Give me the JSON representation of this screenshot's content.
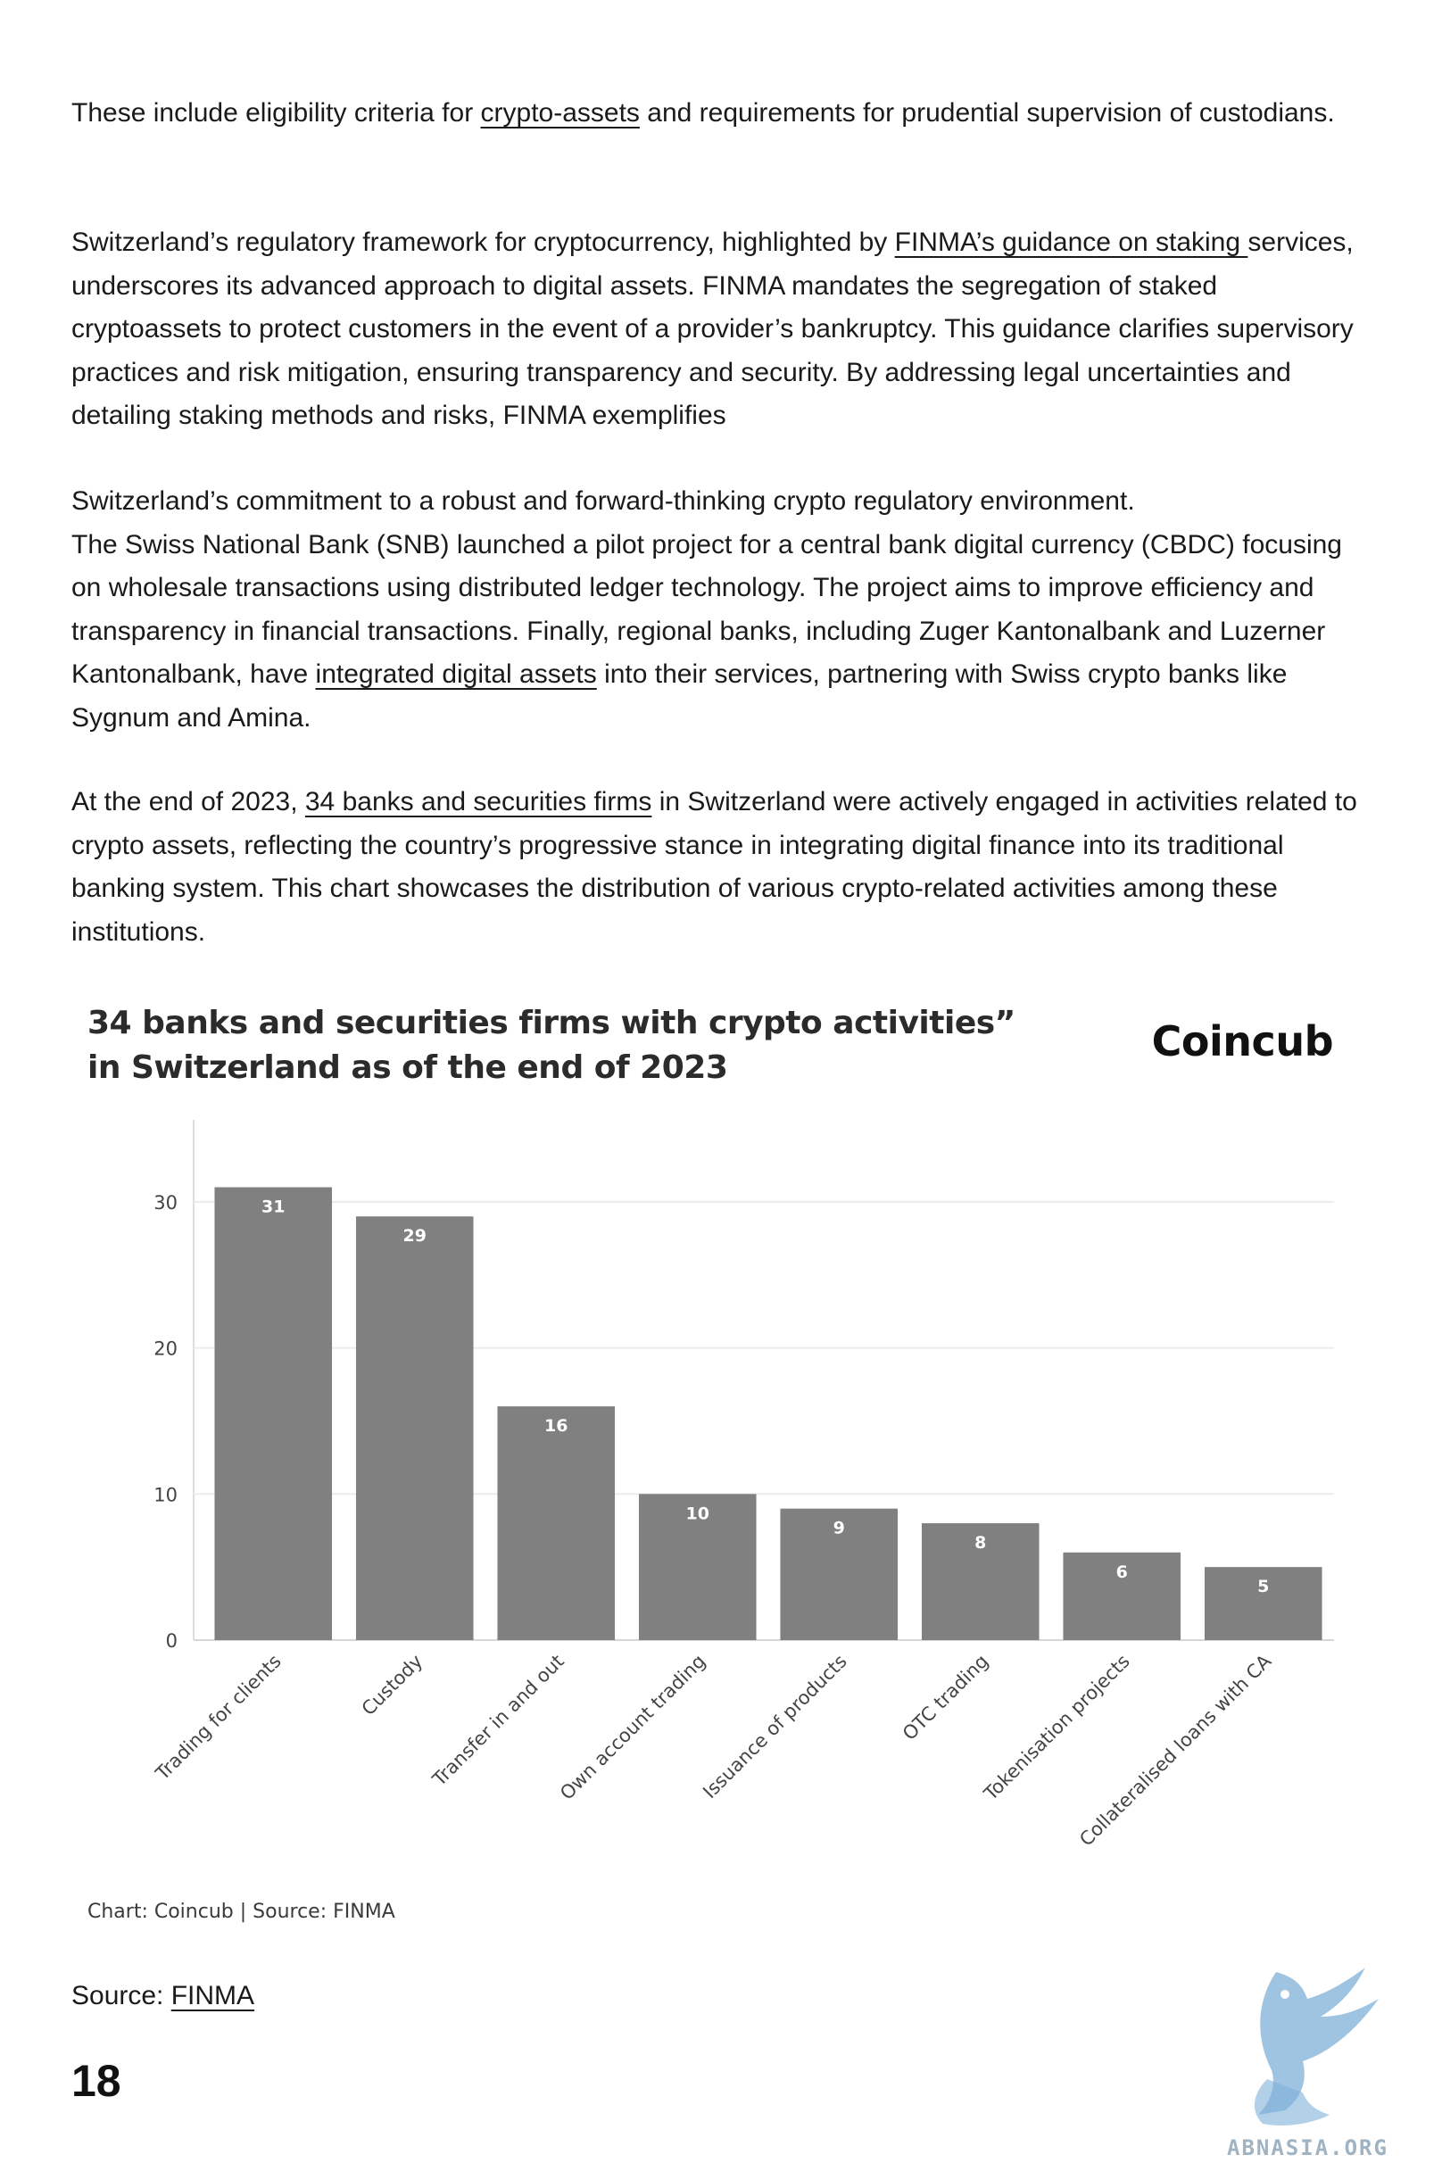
{
  "body": {
    "p1": {
      "before": "These include eligibility criteria for ",
      "link": "crypto-assets",
      "after": " and requirements for prudential supervision of custodians."
    },
    "p2": {
      "before": "Switzerland’s regulatory framework for cryptocurrency, highlighted by ",
      "link": "FINMA’s guidance on staking ",
      "after": "services, underscores its advanced approach to digital assets. FINMA mandates the segregation of staked cryptoassets to protect customers in the event of a provider’s bankruptcy. This guidance clarifies supervisory practices and risk mitigation, ensuring transparency and security. By addressing legal uncertainties and detailing staking methods and risks, FINMA exemplifies"
    },
    "p3": {
      "line1": "Switzerland’s commitment to a robust and forward-thinking crypto regulatory environment.",
      "before": "The Swiss National Bank (SNB) launched a pilot project for a central bank digital currency (CBDC) focusing on wholesale transactions using distributed ledger technology. The project aims to improve efficiency and transparency in financial transactions. Finally, regional banks, including Zuger Kantonalbank and Luzerner Kantonalbank, have ",
      "link": "integrated digital assets",
      "after": " into their services, partnering with Swiss crypto banks like Sygnum and Amina."
    },
    "p4": {
      "before": "At the end of 2023, ",
      "link": "34 banks and securities firms",
      "after": " in Switzerland were actively engaged in activities related to crypto assets, reflecting the country’s progressive stance in integrating digital finance into its traditional banking system. This chart showcases the distribution of various crypto-related activities among these institutions."
    }
  },
  "chart_brand": "Coincub",
  "chart_caption": "Chart: Coincub | Source: FINMA",
  "source": {
    "label": "Source: ",
    "link": "FINMA"
  },
  "page_number": "18",
  "watermark_text": "ABNASIA.ORG",
  "colors": {
    "bar": "#808080",
    "grid": "#ececec",
    "bar_label": "#ffffff",
    "watermark": "#7fb0d8"
  },
  "chart_data": {
    "type": "bar",
    "title": "34 banks and securities firms with crypto activities” in Switzerland as of the end of 2023",
    "categories": [
      "Trading for clients",
      "Custody",
      "Transfer in and out",
      "Own account trading",
      "Issuance of products",
      "OTC trading",
      "Tokenisation projects",
      "Collateralised loans with CA"
    ],
    "values": [
      31,
      29,
      16,
      10,
      9,
      8,
      6,
      5
    ],
    "yticks": [
      0,
      10,
      20,
      30
    ],
    "ylim": [
      0,
      35
    ],
    "xlabel": "",
    "ylabel": "",
    "grid": true,
    "data_labels": true
  }
}
